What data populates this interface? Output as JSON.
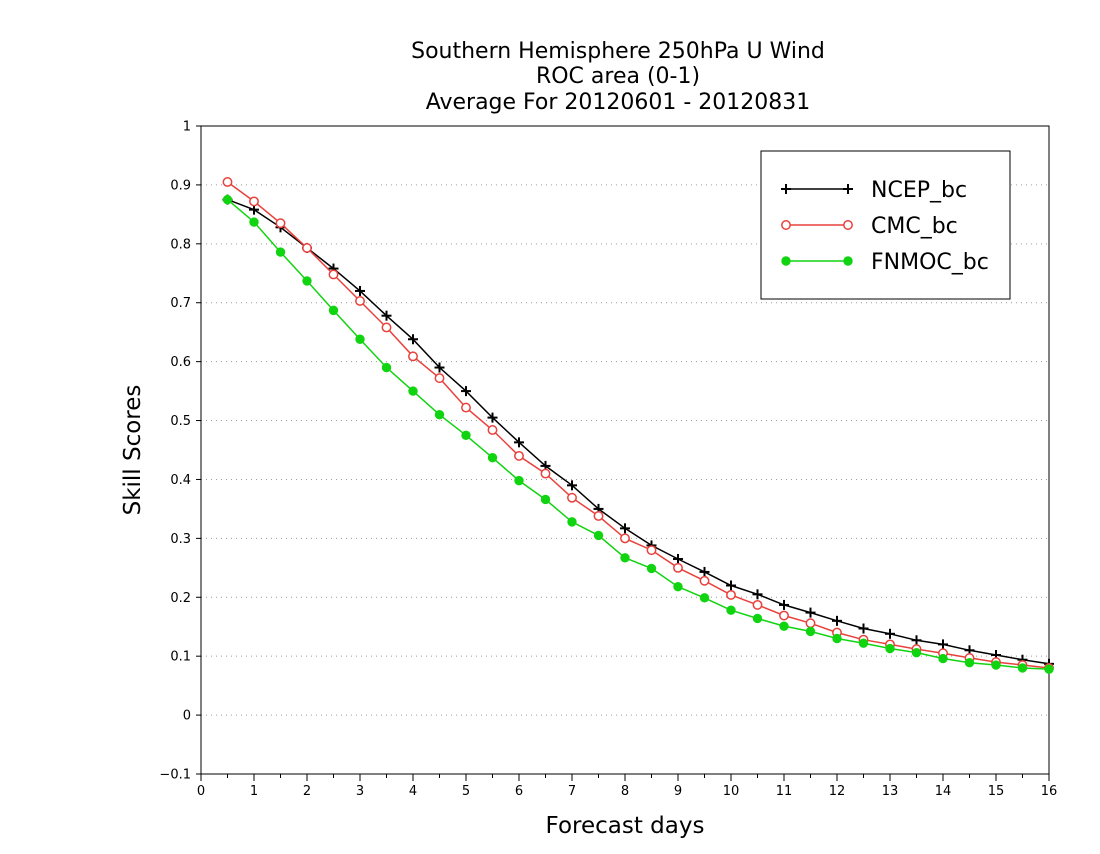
{
  "chart_data": {
    "type": "line",
    "title": [
      "Southern Hemisphere 250hPa U Wind",
      "ROC area (0-1)",
      "Average For 20120601 - 20120831"
    ],
    "xlabel": "Forecast days",
    "ylabel": "Skill Scores",
    "xlim": [
      0,
      16
    ],
    "ylim": [
      -0.1,
      1
    ],
    "x_ticks": [
      "0",
      "1",
      "2",
      "3",
      "4",
      "5",
      "6",
      "7",
      "8",
      "9",
      "10",
      "11",
      "12",
      "13",
      "14",
      "15",
      "16"
    ],
    "y_ticks": [
      "−0.1",
      "0",
      "0.1",
      "0.2",
      "0.3",
      "0.4",
      "0.5",
      "0.6",
      "0.7",
      "0.8",
      "0.9",
      "1"
    ],
    "grid": true,
    "legend_position": "top-right",
    "x": [
      0.5,
      1,
      1.5,
      2,
      2.5,
      3,
      3.5,
      4,
      4.5,
      5,
      5.5,
      6,
      6.5,
      7,
      7.5,
      8,
      8.5,
      9,
      9.5,
      10,
      10.5,
      11,
      11.5,
      12,
      12.5,
      13,
      13.5,
      14,
      14.5,
      15,
      15.5,
      16
    ],
    "series": [
      {
        "name": "NCEP_bc",
        "color": "#000000",
        "marker": "plus",
        "values": [
          0.875,
          0.858,
          0.828,
          0.793,
          0.758,
          0.72,
          0.678,
          0.638,
          0.59,
          0.55,
          0.505,
          0.463,
          0.423,
          0.39,
          0.35,
          0.317,
          0.288,
          0.265,
          0.243,
          0.22,
          0.205,
          0.187,
          0.174,
          0.16,
          0.147,
          0.138,
          0.127,
          0.12,
          0.11,
          0.102,
          0.094,
          0.087
        ]
      },
      {
        "name": "CMC_bc",
        "color": "#e8413c",
        "marker": "open-circle",
        "values": [
          0.905,
          0.872,
          0.835,
          0.793,
          0.748,
          0.703,
          0.658,
          0.609,
          0.572,
          0.522,
          0.484,
          0.44,
          0.41,
          0.369,
          0.338,
          0.3,
          0.28,
          0.25,
          0.228,
          0.204,
          0.187,
          0.169,
          0.156,
          0.14,
          0.128,
          0.12,
          0.112,
          0.105,
          0.097,
          0.09,
          0.085,
          0.08
        ]
      },
      {
        "name": "FNMOC_bc",
        "color": "#11d411",
        "marker": "filled-circle",
        "values": [
          0.875,
          0.837,
          0.786,
          0.737,
          0.687,
          0.638,
          0.59,
          0.55,
          0.51,
          0.475,
          0.437,
          0.398,
          0.366,
          0.328,
          0.305,
          0.267,
          0.249,
          0.218,
          0.199,
          0.178,
          0.164,
          0.151,
          0.142,
          0.13,
          0.122,
          0.113,
          0.106,
          0.096,
          0.089,
          0.085,
          0.08,
          0.078
        ]
      }
    ]
  }
}
